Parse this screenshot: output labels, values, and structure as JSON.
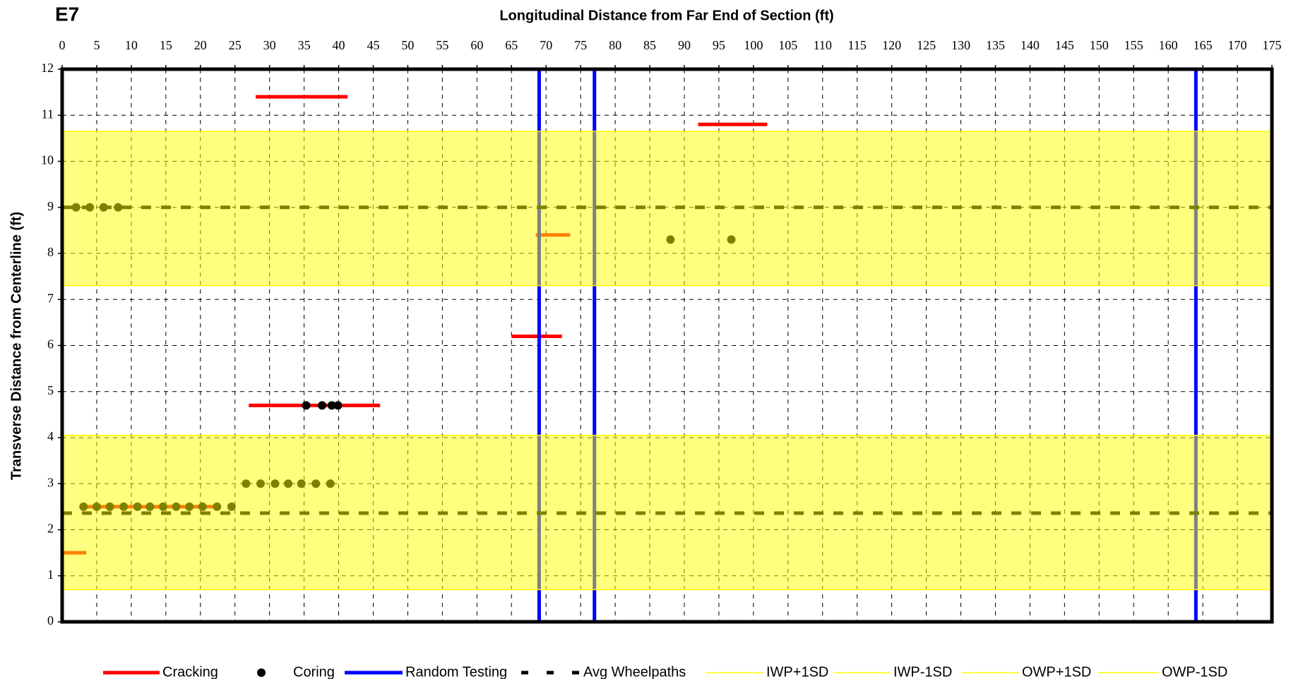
{
  "chart_data": {
    "type": "scatter",
    "title": "E7",
    "x_label": "Longitudinal Distance from Far End of Section (ft)",
    "y_label": "Transverse Distance from Centerline (ft)",
    "xlim": [
      0,
      175
    ],
    "ylim": [
      0,
      12
    ],
    "xticks": [
      0,
      5,
      10,
      15,
      20,
      25,
      30,
      35,
      40,
      45,
      50,
      55,
      60,
      65,
      70,
      75,
      80,
      85,
      90,
      95,
      100,
      105,
      110,
      115,
      120,
      125,
      130,
      135,
      140,
      145,
      150,
      155,
      160,
      165,
      170,
      175
    ],
    "yticks": [
      0,
      1,
      2,
      3,
      4,
      5,
      6,
      7,
      8,
      9,
      10,
      11,
      12
    ],
    "grid": true,
    "legend": "bottom",
    "band_color": "#ffff00",
    "band_opacity": 0.5,
    "series": [
      {
        "name": "Cracking",
        "kind": "segments",
        "color": "#ff0000",
        "x0": [
          28,
          92,
          65,
          27,
          0,
          68.5,
          2.5
        ],
        "x1": [
          41.3,
          102,
          72.3,
          46,
          3.5,
          73.5,
          22
        ],
        "y": [
          11.4,
          10.8,
          6.2,
          4.7,
          1.5,
          8.4,
          2.5
        ]
      },
      {
        "name": "Coring",
        "kind": "points",
        "color": "#000000",
        "x": [
          35.3,
          37.6,
          39,
          39.9,
          2,
          4,
          6,
          8.1,
          88,
          96.8,
          26.6,
          28.7,
          30.8,
          32.7,
          34.6,
          36.7,
          38.8,
          3.1,
          5,
          6.9,
          8.9,
          10.9,
          12.7,
          14.6,
          16.5,
          18.4,
          20.3,
          22.4,
          24.5
        ],
        "y": [
          4.7,
          4.7,
          4.7,
          4.7,
          9,
          9,
          9,
          9,
          8.3,
          8.3,
          3,
          3,
          3,
          3,
          3,
          3,
          3,
          2.5,
          2.5,
          2.5,
          2.5,
          2.5,
          2.5,
          2.5,
          2.5,
          2.5,
          2.5,
          2.5,
          2.5
        ]
      },
      {
        "name": "Random Testing",
        "kind": "vlines",
        "color": "#0000ff",
        "x": [
          69,
          77,
          164
        ]
      },
      {
        "name": "Avg Wheelpaths",
        "kind": "hlines",
        "color": "#000000",
        "dashed": true,
        "y": [
          9,
          2.36
        ]
      },
      {
        "name": "IWP+1SD",
        "kind": "band-edge",
        "color": "#ffff00",
        "y": 4.05
      },
      {
        "name": "IWP-1SD",
        "kind": "band-edge",
        "color": "#ffff00",
        "y": 0.7
      },
      {
        "name": "OWP+1SD",
        "kind": "band-edge",
        "color": "#ffff00",
        "y": 10.65
      },
      {
        "name": "OWP-1SD",
        "kind": "band-edge",
        "color": "#ffff00",
        "y": 7.3
      }
    ]
  }
}
